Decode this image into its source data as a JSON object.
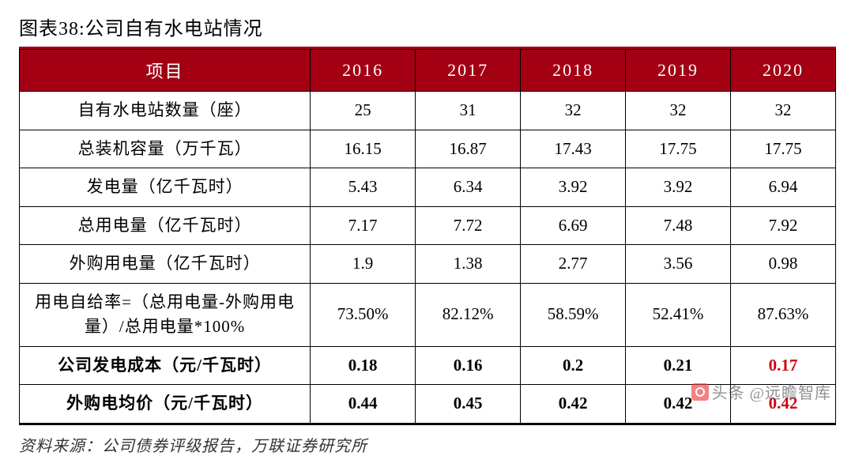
{
  "title": "图表38:公司自有水电站情况",
  "table": {
    "type": "table",
    "header_bg": "#a30014",
    "header_fg": "#ffffff",
    "border_color": "#000000",
    "accent_color": "#a30014",
    "highlight_color": "#d00015",
    "columns": [
      "项目",
      "2016",
      "2017",
      "2018",
      "2019",
      "2020"
    ],
    "rows": [
      {
        "label": "自有水电站数量（座）",
        "values": [
          "25",
          "31",
          "32",
          "32",
          "32"
        ],
        "bold": false
      },
      {
        "label": "总装机容量（万千瓦）",
        "values": [
          "16.15",
          "16.87",
          "17.43",
          "17.75",
          "17.75"
        ],
        "bold": false
      },
      {
        "label": "发电量（亿千瓦时）",
        "values": [
          "5.43",
          "6.34",
          "3.92",
          "3.92",
          "6.94"
        ],
        "bold": false
      },
      {
        "label": "总用电量（亿千瓦时）",
        "values": [
          "7.17",
          "7.72",
          "6.69",
          "7.48",
          "7.92"
        ],
        "bold": false
      },
      {
        "label": "外购用电量（亿千瓦时）",
        "values": [
          "1.9",
          "1.38",
          "2.77",
          "3.56",
          "0.98"
        ],
        "bold": false
      },
      {
        "label": "用电自给率=（总用电量-外购用电量）/总用电量*100%",
        "values": [
          "73.50%",
          "82.12%",
          "58.59%",
          "52.41%",
          "87.63%"
        ],
        "bold": false
      },
      {
        "label": "公司发电成本（元/千瓦时）",
        "values": [
          "0.18",
          "0.16",
          "0.2",
          "0.21",
          "0.17"
        ],
        "bold": true,
        "highlight_last": true
      },
      {
        "label": "外购电均价（元/千瓦时）",
        "values": [
          "0.44",
          "0.45",
          "0.42",
          "0.42",
          "0.42"
        ],
        "bold": true,
        "highlight_last": true
      }
    ]
  },
  "source": "资料来源：公司债券评级报告，万联证券研究所",
  "watermark": "头条 @远瞻智库"
}
